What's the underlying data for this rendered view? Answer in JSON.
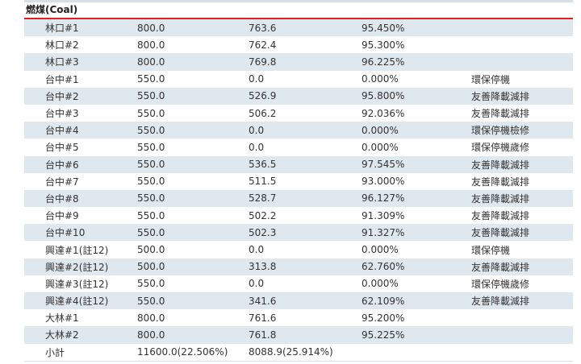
{
  "section": {
    "title": "燃煤(Coal)"
  },
  "rows": [
    {
      "name": "林口#1",
      "capacity": "800.0",
      "net": "763.6",
      "rate": "95.450%",
      "note": ""
    },
    {
      "name": "林口#2",
      "capacity": "800.0",
      "net": "762.4",
      "rate": "95.300%",
      "note": ""
    },
    {
      "name": "林口#3",
      "capacity": "800.0",
      "net": "769.8",
      "rate": "96.225%",
      "note": ""
    },
    {
      "name": "台中#1",
      "capacity": "550.0",
      "net": "0.0",
      "rate": "0.000%",
      "note": "環保停機"
    },
    {
      "name": "台中#2",
      "capacity": "550.0",
      "net": "526.9",
      "rate": "95.800%",
      "note": "友善降載減排"
    },
    {
      "name": "台中#3",
      "capacity": "550.0",
      "net": "506.2",
      "rate": "92.036%",
      "note": "友善降載減排"
    },
    {
      "name": "台中#4",
      "capacity": "550.0",
      "net": "0.0",
      "rate": "0.000%",
      "note": "環保停機檢修"
    },
    {
      "name": "台中#5",
      "capacity": "550.0",
      "net": "0.0",
      "rate": "0.000%",
      "note": "環保停機歲修"
    },
    {
      "name": "台中#6",
      "capacity": "550.0",
      "net": "536.5",
      "rate": "97.545%",
      "note": "友善降載減排"
    },
    {
      "name": "台中#7",
      "capacity": "550.0",
      "net": "511.5",
      "rate": "93.000%",
      "note": "友善降載減排"
    },
    {
      "name": "台中#8",
      "capacity": "550.0",
      "net": "528.7",
      "rate": "96.127%",
      "note": "友善降載減排"
    },
    {
      "name": "台中#9",
      "capacity": "550.0",
      "net": "502.2",
      "rate": "91.309%",
      "note": "友善降載減排"
    },
    {
      "name": "台中#10",
      "capacity": "550.0",
      "net": "502.3",
      "rate": "91.327%",
      "note": "友善降載減排"
    },
    {
      "name": "興達#1(註12)",
      "capacity": "500.0",
      "net": "0.0",
      "rate": "0.000%",
      "note": "環保停機"
    },
    {
      "name": "興達#2(註12)",
      "capacity": "500.0",
      "net": "313.8",
      "rate": "62.760%",
      "note": "友善降載減排"
    },
    {
      "name": "興達#3(註12)",
      "capacity": "550.0",
      "net": "0.0",
      "rate": "0.000%",
      "note": "環保停機歲修"
    },
    {
      "name": "興達#4(註12)",
      "capacity": "550.0",
      "net": "341.6",
      "rate": "62.109%",
      "note": "友善降載減排"
    },
    {
      "name": "大林#1",
      "capacity": "800.0",
      "net": "761.6",
      "rate": "95.200%",
      "note": ""
    },
    {
      "name": "大林#2",
      "capacity": "800.0",
      "net": "761.8",
      "rate": "95.225%",
      "note": ""
    }
  ],
  "subtotal": {
    "name": "小計",
    "capacity": "11600.0(22.506%)",
    "net": "8088.9(25.914%)",
    "rate": "",
    "note": ""
  },
  "colors": {
    "header_rule": "#e02020",
    "row_shade": "#dfe7ef"
  }
}
